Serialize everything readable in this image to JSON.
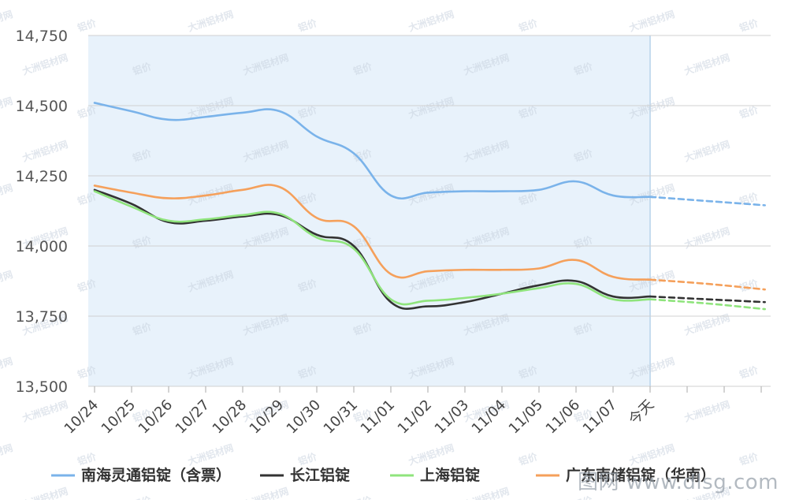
{
  "chart_data": {
    "type": "line",
    "categories": [
      "10/24",
      "10/25",
      "10/26",
      "10/27",
      "10/28",
      "10/29",
      "10/30",
      "10/31",
      "11/01",
      "11/02",
      "11/03",
      "11/04",
      "11/05",
      "11/06",
      "11/07",
      "今天"
    ],
    "y_ticks": [
      "14,750",
      "14,500",
      "14,250",
      "14,000",
      "13,750",
      "13,500"
    ],
    "ylim": [
      13500,
      14750
    ],
    "grid": true,
    "legend_position": "bottom",
    "series": [
      {
        "name": "南海灵通铝锭（含票）",
        "color": "#7ab3ea",
        "values": [
          14510,
          14480,
          14450,
          14460,
          14475,
          14480,
          14390,
          14330,
          14180,
          14190,
          14195,
          14195,
          14200,
          14230,
          14180,
          14175
        ],
        "forecast": [
          14175,
          14160,
          14145
        ]
      },
      {
        "name": "长江铝锭",
        "color": "#333333",
        "values": [
          14200,
          14150,
          14085,
          14090,
          14105,
          14110,
          14040,
          14000,
          13800,
          13785,
          13800,
          13830,
          13860,
          13875,
          13820,
          13820
        ],
        "forecast": [
          13820,
          13810,
          13800
        ]
      },
      {
        "name": "上海铝锭",
        "color": "#8fe47c",
        "values": [
          14195,
          14140,
          14090,
          14095,
          14110,
          14115,
          14030,
          13990,
          13810,
          13805,
          13815,
          13830,
          13850,
          13865,
          13810,
          13810
        ],
        "forecast": [
          13810,
          13795,
          13775
        ]
      },
      {
        "name": "广东南储铝锭（华南）",
        "color": "#f5a05b",
        "values": [
          14215,
          14190,
          14170,
          14180,
          14200,
          14210,
          14100,
          14070,
          13900,
          13910,
          13915,
          13915,
          13920,
          13950,
          13890,
          13880
        ],
        "forecast": [
          13880,
          13865,
          13845
        ]
      }
    ]
  },
  "watermark": {
    "brand": "大洲铝材网",
    "tag": "铝价",
    "site": "图网  www.dlsg.com"
  },
  "colors": {
    "history_band": "#e8f2fb",
    "grid": "#d0d0d0",
    "axis_text": "#555555"
  }
}
